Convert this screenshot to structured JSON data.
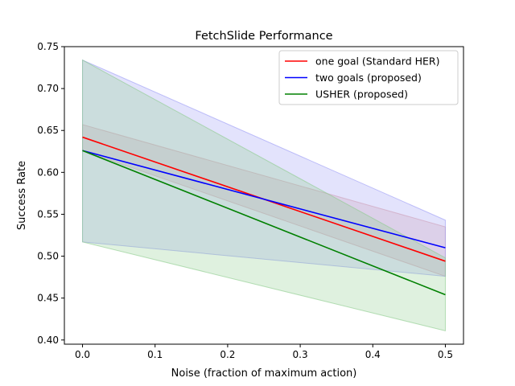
{
  "chart_data": {
    "type": "line",
    "title": "FetchSlide Performance",
    "xlabel": "Noise (fraction of maximum action)",
    "ylabel": "Success Rate",
    "xlim": [
      -0.025,
      0.525
    ],
    "ylim": [
      0.395,
      0.75
    ],
    "xticks": [
      0.0,
      0.1,
      0.2,
      0.3,
      0.4,
      0.5
    ],
    "xtick_labels": [
      "0.0",
      "0.1",
      "0.2",
      "0.3",
      "0.4",
      "0.5"
    ],
    "yticks": [
      0.4,
      0.45,
      0.5,
      0.55,
      0.6,
      0.65,
      0.7,
      0.75
    ],
    "ytick_labels": [
      "0.40",
      "0.45",
      "0.50",
      "0.55",
      "0.60",
      "0.65",
      "0.70",
      "0.75"
    ],
    "grid": false,
    "legend_position": "top-right",
    "x": [
      0.0,
      0.5
    ],
    "series": [
      {
        "name": "one goal (Standard HER)",
        "color": "#ff0000",
        "fill_color": "#e0a0a0",
        "values": [
          0.642,
          0.494
        ],
        "lower": [
          0.626,
          0.476
        ],
        "upper": [
          0.657,
          0.535
        ]
      },
      {
        "name": "two goals (proposed)",
        "color": "#0000ff",
        "fill_color": "#9a9af5",
        "values": [
          0.626,
          0.51
        ],
        "lower": [
          0.517,
          0.476
        ],
        "upper": [
          0.734,
          0.543
        ]
      },
      {
        "name": "USHER (proposed)",
        "color": "#008000",
        "fill_color": "#8ccc8c",
        "values": [
          0.626,
          0.454
        ],
        "lower": [
          0.517,
          0.411
        ],
        "upper": [
          0.734,
          0.498
        ]
      }
    ]
  }
}
